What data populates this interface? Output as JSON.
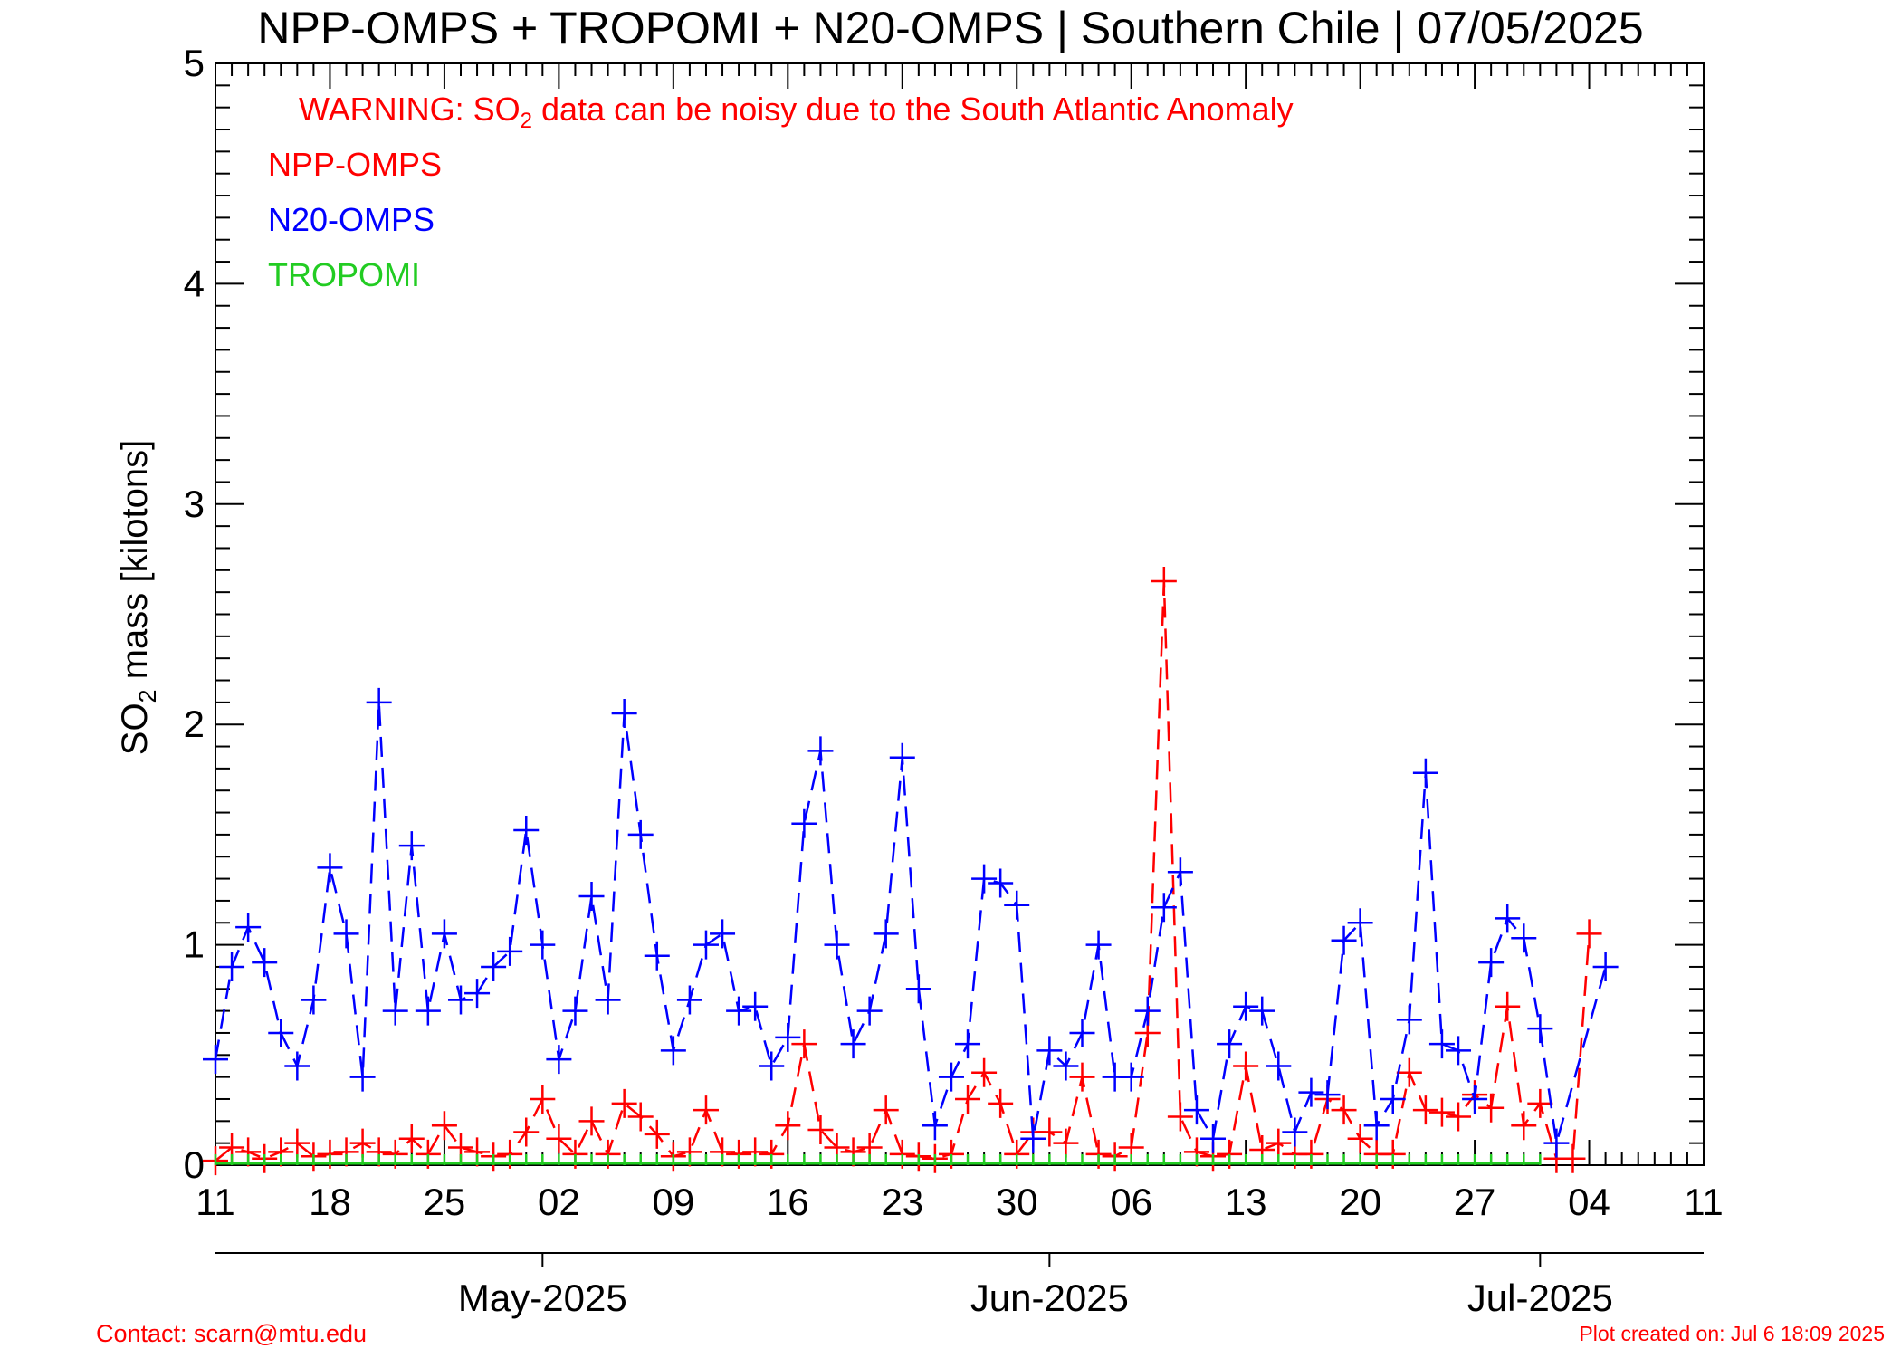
{
  "chart_data": {
    "type": "line",
    "title": "NPP-OMPS + TROPOMI + N20-OMPS | Southern Chile | 07/05/2025",
    "ylabel_main": "SO",
    "ylabel_sub": "2",
    "ylabel_rest": " mass [kilotons]",
    "ylim": [
      0,
      5
    ],
    "yticks": [
      "0",
      "1",
      "2",
      "3",
      "4",
      "5"
    ],
    "xlim_days": [
      "2025-04-11",
      "2025-07-11"
    ],
    "xtick_labels": [
      "11",
      "18",
      "25",
      "02",
      "09",
      "16",
      "23",
      "30",
      "06",
      "13",
      "20",
      "27",
      "04",
      "11"
    ],
    "month_labels": [
      "May-2025",
      "Jun-2025",
      "Jul-2025"
    ],
    "warning": {
      "pre": "WARNING: SO",
      "sub": "2",
      "post": " data can be noisy due to the South Atlantic Anomaly"
    },
    "legend_position": "top-left",
    "series": [
      {
        "name": "NPP-OMPS",
        "color": "#ff0000",
        "x": [
          "2025-04-11",
          "2025-04-12",
          "2025-04-13",
          "2025-04-14",
          "2025-04-15",
          "2025-04-16",
          "2025-04-17",
          "2025-04-18",
          "2025-04-19",
          "2025-04-20",
          "2025-04-21",
          "2025-04-22",
          "2025-04-23",
          "2025-04-24",
          "2025-04-25",
          "2025-04-26",
          "2025-04-27",
          "2025-04-28",
          "2025-04-29",
          "2025-04-30",
          "2025-05-01",
          "2025-05-02",
          "2025-05-03",
          "2025-05-04",
          "2025-05-05",
          "2025-05-06",
          "2025-05-07",
          "2025-05-08",
          "2025-05-09",
          "2025-05-10",
          "2025-05-11",
          "2025-05-12",
          "2025-05-13",
          "2025-05-14",
          "2025-05-15",
          "2025-05-16",
          "2025-05-17",
          "2025-05-18",
          "2025-05-19",
          "2025-05-20",
          "2025-05-21",
          "2025-05-22",
          "2025-05-23",
          "2025-05-24",
          "2025-05-25",
          "2025-05-26",
          "2025-05-27",
          "2025-05-28",
          "2025-05-29",
          "2025-05-30",
          "2025-05-31",
          "2025-06-01",
          "2025-06-02",
          "2025-06-03",
          "2025-06-04",
          "2025-06-05",
          "2025-06-06",
          "2025-06-07",
          "2025-06-08",
          "2025-06-09",
          "2025-06-10",
          "2025-06-11",
          "2025-06-12",
          "2025-06-13",
          "2025-06-14",
          "2025-06-15",
          "2025-06-16",
          "2025-06-17",
          "2025-06-18",
          "2025-06-19",
          "2025-06-20",
          "2025-06-21",
          "2025-06-22",
          "2025-06-23",
          "2025-06-24",
          "2025-06-25",
          "2025-06-26",
          "2025-06-27",
          "2025-06-28",
          "2025-06-29",
          "2025-06-30",
          "2025-07-01",
          "2025-07-02",
          "2025-07-03",
          "2025-07-04"
        ],
        "y": [
          0.02,
          0.08,
          0.06,
          0.03,
          0.06,
          0.1,
          0.04,
          0.05,
          0.06,
          0.1,
          0.06,
          0.05,
          0.12,
          0.05,
          0.18,
          0.08,
          0.06,
          0.04,
          0.05,
          0.15,
          0.3,
          0.12,
          0.05,
          0.2,
          0.05,
          0.28,
          0.22,
          0.14,
          0.04,
          0.06,
          0.25,
          0.06,
          0.05,
          0.06,
          0.05,
          0.18,
          0.55,
          0.16,
          0.08,
          0.06,
          0.08,
          0.25,
          0.05,
          0.04,
          0.03,
          0.05,
          0.3,
          0.42,
          0.28,
          0.05,
          0.15,
          0.15,
          0.1,
          0.4,
          0.05,
          0.04,
          0.08,
          0.6,
          2.65,
          0.22,
          0.06,
          0.04,
          0.05,
          0.45,
          0.07,
          0.1,
          0.05,
          0.05,
          0.3,
          0.25,
          0.12,
          0.05,
          0.05,
          0.42,
          0.25,
          0.24,
          0.22,
          0.32,
          0.26,
          0.72,
          0.18,
          0.28,
          0.03,
          0.03,
          1.05
        ]
      },
      {
        "name": "N20-OMPS",
        "color": "#0000ff",
        "x": [
          "2025-04-11",
          "2025-04-12",
          "2025-04-13",
          "2025-04-14",
          "2025-04-15",
          "2025-04-16",
          "2025-04-17",
          "2025-04-18",
          "2025-04-19",
          "2025-04-20",
          "2025-04-21",
          "2025-04-22",
          "2025-04-23",
          "2025-04-24",
          "2025-04-25",
          "2025-04-26",
          "2025-04-27",
          "2025-04-28",
          "2025-04-29",
          "2025-04-30",
          "2025-05-01",
          "2025-05-02",
          "2025-05-03",
          "2025-05-04",
          "2025-05-05",
          "2025-05-06",
          "2025-05-07",
          "2025-05-08",
          "2025-05-09",
          "2025-05-10",
          "2025-05-11",
          "2025-05-12",
          "2025-05-13",
          "2025-05-14",
          "2025-05-15",
          "2025-05-16",
          "2025-05-17",
          "2025-05-18",
          "2025-05-19",
          "2025-05-20",
          "2025-05-21",
          "2025-05-22",
          "2025-05-23",
          "2025-05-24",
          "2025-05-25",
          "2025-05-26",
          "2025-05-27",
          "2025-05-28",
          "2025-05-29",
          "2025-05-30",
          "2025-05-31",
          "2025-06-01",
          "2025-06-02",
          "2025-06-03",
          "2025-06-04",
          "2025-06-05",
          "2025-06-06",
          "2025-06-07",
          "2025-06-08",
          "2025-06-09",
          "2025-06-10",
          "2025-06-11",
          "2025-06-12",
          "2025-06-13",
          "2025-06-14",
          "2025-06-15",
          "2025-06-16",
          "2025-06-17",
          "2025-06-18",
          "2025-06-19",
          "2025-06-20",
          "2025-06-21",
          "2025-06-22",
          "2025-06-23",
          "2025-06-24",
          "2025-06-25",
          "2025-06-26",
          "2025-06-27",
          "2025-06-28",
          "2025-06-29",
          "2025-06-30",
          "2025-07-01",
          "2025-07-02",
          "2025-07-03",
          "2025-07-04",
          "2025-07-05"
        ],
        "y": [
          0.48,
          0.9,
          1.08,
          0.92,
          0.6,
          0.45,
          0.75,
          1.35,
          1.05,
          0.4,
          2.1,
          0.7,
          1.45,
          0.7,
          1.05,
          0.75,
          0.78,
          0.9,
          0.97,
          1.52,
          1.0,
          0.48,
          0.7,
          1.22,
          0.75,
          2.05,
          1.5,
          0.95,
          0.52,
          0.75,
          1.0,
          1.05,
          0.7,
          0.72,
          0.45,
          0.58,
          1.55,
          1.88,
          1.0,
          0.55,
          0.7,
          1.05,
          1.85,
          0.8,
          0.18,
          0.4,
          0.55,
          1.3,
          1.28,
          1.18,
          0.12,
          0.52,
          0.45,
          0.6,
          1.0,
          0.4,
          0.4,
          0.7,
          1.17,
          1.33,
          0.25,
          0.12,
          0.55,
          0.72,
          0.7,
          0.45,
          0.15,
          0.33,
          0.32,
          1.02,
          1.1,
          0.18,
          0.3,
          0.66,
          1.78,
          0.55,
          0.52,
          0.3,
          0.92,
          1.12,
          1.03,
          0.62,
          0.1,
          null,
          null,
          0.9
        ]
      },
      {
        "name": "TROPOMI",
        "color": "#22cc22",
        "x_start": "2025-04-11",
        "x_end": "2025-07-01",
        "y_all": 0.0
      }
    ]
  },
  "footer": {
    "contact": "Contact: scarn@mtu.edu",
    "created": "Plot created on: Jul  6 18:09 2025"
  }
}
